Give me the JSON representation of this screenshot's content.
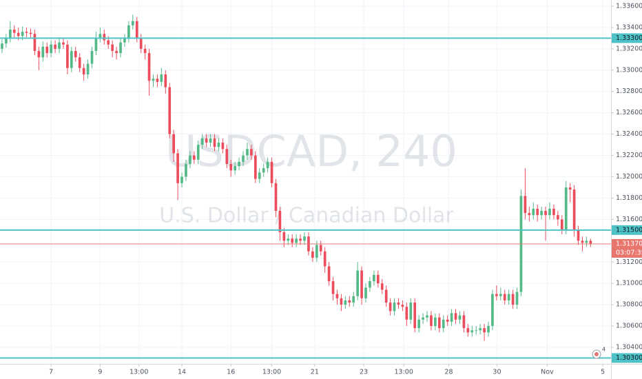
{
  "chart_data": {
    "type": "candlestick",
    "title": "USDCAD, 240",
    "subtitle": "U.S. Dollar / Canadian Dollar",
    "up_color": "#53b987",
    "down_color": "#eb4d5c",
    "grid": true,
    "ylim": [
      1.30245,
      1.33658
    ],
    "xlim": [
      -0.5,
      149
    ],
    "yticks": [
      {
        "value": 1.336,
        "label": "1.33600"
      },
      {
        "value": 1.334,
        "label": "1.33400"
      },
      {
        "value": 1.332,
        "label": "1.33200"
      },
      {
        "value": 1.33,
        "label": "1.33000"
      },
      {
        "value": 1.328,
        "label": "1.32800"
      },
      {
        "value": 1.326,
        "label": "1.32600"
      },
      {
        "value": 1.324,
        "label": "1.32400"
      },
      {
        "value": 1.322,
        "label": "1.32200"
      },
      {
        "value": 1.32,
        "label": "1.32000"
      },
      {
        "value": 1.318,
        "label": "1.31800"
      },
      {
        "value": 1.316,
        "label": "1.31600"
      },
      {
        "value": 1.312,
        "label": "1.31200"
      },
      {
        "value": 1.31,
        "label": "1.31000"
      },
      {
        "value": 1.308,
        "label": "1.30800"
      },
      {
        "value": 1.306,
        "label": "1.30600"
      },
      {
        "value": 1.304,
        "label": "1.30400"
      }
    ],
    "xticks": [
      {
        "value": 12,
        "label": "7"
      },
      {
        "value": 24,
        "label": "9"
      },
      {
        "value": 33.5,
        "label": "13:00"
      },
      {
        "value": 44,
        "label": "14"
      },
      {
        "value": 56,
        "label": "16"
      },
      {
        "value": 66,
        "label": "13:00"
      },
      {
        "value": 76.5,
        "label": "21"
      },
      {
        "value": 88.5,
        "label": "23"
      },
      {
        "value": 98.3,
        "label": "13:00"
      },
      {
        "value": 109.3,
        "label": "28"
      },
      {
        "value": 121.1,
        "label": "30"
      },
      {
        "value": 133.4,
        "label": "Nov"
      },
      {
        "value": 147,
        "label": "5"
      }
    ],
    "price_lines": [
      {
        "value": 1.333,
        "label": "1.33300",
        "color": "#4dc3c8"
      },
      {
        "value": 1.315,
        "label": "1.31500",
        "color": "#4dc3c8"
      },
      {
        "value": 1.303,
        "label": "1.30300",
        "color": "#4dc3c8"
      }
    ],
    "current_price": {
      "value": 1.3137,
      "label": "1.31370",
      "countdown": "03:07:35",
      "color": "#e8766c"
    },
    "badge": "4",
    "candles": [
      [
        1.332,
        1.3329,
        1.3316,
        1.3325
      ],
      [
        1.3325,
        1.3334,
        1.3321,
        1.333
      ],
      [
        1.333,
        1.3346,
        1.3326,
        1.3338
      ],
      [
        1.3338,
        1.3342,
        1.333,
        1.3335
      ],
      [
        1.3335,
        1.334,
        1.3328,
        1.3332
      ],
      [
        1.3332,
        1.3341,
        1.3328,
        1.3336
      ],
      [
        1.3336,
        1.334,
        1.3331,
        1.3335
      ],
      [
        1.3335,
        1.3339,
        1.333,
        1.3334
      ],
      [
        1.3334,
        1.3338,
        1.3314,
        1.3318
      ],
      [
        1.3318,
        1.3322,
        1.33,
        1.3312
      ],
      [
        1.3312,
        1.3327,
        1.3308,
        1.3322
      ],
      [
        1.3322,
        1.3326,
        1.3312,
        1.3316
      ],
      [
        1.3316,
        1.3328,
        1.3312,
        1.3324
      ],
      [
        1.3324,
        1.3328,
        1.3316,
        1.332
      ],
      [
        1.332,
        1.3331,
        1.3316,
        1.3326
      ],
      [
        1.3326,
        1.333,
        1.332,
        1.3324
      ],
      [
        1.3324,
        1.3328,
        1.3296,
        1.3302
      ],
      [
        1.3302,
        1.3322,
        1.3298,
        1.3318
      ],
      [
        1.3318,
        1.3322,
        1.3308,
        1.3312
      ],
      [
        1.3312,
        1.3316,
        1.3298,
        1.3302
      ],
      [
        1.3302,
        1.3306,
        1.329,
        1.3296
      ],
      [
        1.3296,
        1.331,
        1.3292,
        1.3306
      ],
      [
        1.3306,
        1.3322,
        1.3302,
        1.3318
      ],
      [
        1.3318,
        1.3336,
        1.3314,
        1.333
      ],
      [
        1.333,
        1.334,
        1.3326,
        1.3334
      ],
      [
        1.3334,
        1.3338,
        1.3324,
        1.3328
      ],
      [
        1.3328,
        1.3332,
        1.332,
        1.3324
      ],
      [
        1.3324,
        1.3328,
        1.3312,
        1.3318
      ],
      [
        1.3318,
        1.3322,
        1.331,
        1.3316
      ],
      [
        1.3316,
        1.333,
        1.3312,
        1.3326
      ],
      [
        1.3326,
        1.3334,
        1.3322,
        1.333
      ],
      [
        1.333,
        1.3346,
        1.3326,
        1.3342
      ],
      [
        1.3342,
        1.3352,
        1.3338,
        1.3346
      ],
      [
        1.3346,
        1.335,
        1.3326,
        1.333
      ],
      [
        1.333,
        1.3334,
        1.3316,
        1.332
      ],
      [
        1.332,
        1.3324,
        1.331,
        1.3316
      ],
      [
        1.3316,
        1.332,
        1.3276,
        1.329
      ],
      [
        1.329,
        1.3296,
        1.3284,
        1.3292
      ],
      [
        1.3292,
        1.3296,
        1.3284,
        1.3289
      ],
      [
        1.3289,
        1.3302,
        1.3285,
        1.3296
      ],
      [
        1.3296,
        1.33,
        1.3278,
        1.3284
      ],
      [
        1.3284,
        1.3288,
        1.3236,
        1.324
      ],
      [
        1.324,
        1.3244,
        1.3214,
        1.3222
      ],
      [
        1.3222,
        1.3226,
        1.3178,
        1.3194
      ],
      [
        1.3194,
        1.3204,
        1.319,
        1.32
      ],
      [
        1.32,
        1.3216,
        1.3196,
        1.3212
      ],
      [
        1.3212,
        1.3224,
        1.3208,
        1.322
      ],
      [
        1.322,
        1.3224,
        1.3212,
        1.3216
      ],
      [
        1.3216,
        1.3234,
        1.3212,
        1.323
      ],
      [
        1.323,
        1.324,
        1.3226,
        1.3236
      ],
      [
        1.3236,
        1.324,
        1.3228,
        1.3232
      ],
      [
        1.3232,
        1.324,
        1.3228,
        1.3236
      ],
      [
        1.3236,
        1.324,
        1.3224,
        1.3228
      ],
      [
        1.3228,
        1.3236,
        1.3224,
        1.3232
      ],
      [
        1.3232,
        1.3236,
        1.3222,
        1.3226
      ],
      [
        1.3226,
        1.323,
        1.3208,
        1.3212
      ],
      [
        1.3212,
        1.3216,
        1.32,
        1.3206
      ],
      [
        1.3206,
        1.3214,
        1.3202,
        1.321
      ],
      [
        1.321,
        1.3218,
        1.3206,
        1.3214
      ],
      [
        1.3214,
        1.3224,
        1.321,
        1.322
      ],
      [
        1.322,
        1.3232,
        1.3216,
        1.3226
      ],
      [
        1.3226,
        1.323,
        1.3216,
        1.322
      ],
      [
        1.322,
        1.3224,
        1.3194,
        1.3198
      ],
      [
        1.3198,
        1.3208,
        1.3194,
        1.3204
      ],
      [
        1.3204,
        1.3212,
        1.32,
        1.3208
      ],
      [
        1.3208,
        1.3218,
        1.3204,
        1.3214
      ],
      [
        1.3214,
        1.3218,
        1.319,
        1.3194
      ],
      [
        1.3194,
        1.3198,
        1.3162,
        1.3168
      ],
      [
        1.3168,
        1.3172,
        1.314,
        1.3148
      ],
      [
        1.3148,
        1.3152,
        1.3134,
        1.314
      ],
      [
        1.314,
        1.3146,
        1.3136,
        1.3142
      ],
      [
        1.3142,
        1.3146,
        1.3134,
        1.3138
      ],
      [
        1.3138,
        1.3146,
        1.3134,
        1.3142
      ],
      [
        1.3142,
        1.3146,
        1.3136,
        1.314
      ],
      [
        1.314,
        1.3148,
        1.3136,
        1.3144
      ],
      [
        1.3144,
        1.3148,
        1.3126,
        1.313
      ],
      [
        1.313,
        1.3134,
        1.312,
        1.3124
      ],
      [
        1.3124,
        1.314,
        1.312,
        1.3136
      ],
      [
        1.3136,
        1.314,
        1.3126,
        1.313
      ],
      [
        1.313,
        1.3134,
        1.311,
        1.3116
      ],
      [
        1.3116,
        1.312,
        1.3098,
        1.3102
      ],
      [
        1.3102,
        1.3106,
        1.3084,
        1.309
      ],
      [
        1.309,
        1.3094,
        1.308,
        1.3086
      ],
      [
        1.3086,
        1.309,
        1.3074,
        1.308
      ],
      [
        1.308,
        1.3088,
        1.3076,
        1.3084
      ],
      [
        1.3084,
        1.3088,
        1.3078,
        1.3082
      ],
      [
        1.3082,
        1.3092,
        1.3078,
        1.3088
      ],
      [
        1.3088,
        1.312,
        1.3084,
        1.3112
      ],
      [
        1.3112,
        1.3116,
        1.308,
        1.3086
      ],
      [
        1.3086,
        1.31,
        1.3082,
        1.3096
      ],
      [
        1.3096,
        1.3106,
        1.3092,
        1.3102
      ],
      [
        1.3102,
        1.3112,
        1.3098,
        1.3108
      ],
      [
        1.3108,
        1.3112,
        1.3096,
        1.31
      ],
      [
        1.31,
        1.3104,
        1.309,
        1.3094
      ],
      [
        1.3094,
        1.3098,
        1.3078,
        1.3082
      ],
      [
        1.3082,
        1.3086,
        1.307,
        1.3074
      ],
      [
        1.3074,
        1.3086,
        1.307,
        1.3082
      ],
      [
        1.3082,
        1.3086,
        1.3076,
        1.308
      ],
      [
        1.308,
        1.3084,
        1.3074,
        1.3078
      ],
      [
        1.3078,
        1.3082,
        1.306,
        1.3066
      ],
      [
        1.3066,
        1.3086,
        1.3062,
        1.3082
      ],
      [
        1.3082,
        1.3086,
        1.3054,
        1.3058
      ],
      [
        1.3058,
        1.307,
        1.3054,
        1.3066
      ],
      [
        1.3066,
        1.3072,
        1.3062,
        1.3068
      ],
      [
        1.3068,
        1.3074,
        1.3064,
        1.307
      ],
      [
        1.307,
        1.3074,
        1.3056,
        1.306
      ],
      [
        1.306,
        1.3072,
        1.3056,
        1.3068
      ],
      [
        1.3068,
        1.3072,
        1.3054,
        1.3058
      ],
      [
        1.3058,
        1.307,
        1.3054,
        1.3066
      ],
      [
        1.3066,
        1.307,
        1.306,
        1.3064
      ],
      [
        1.3064,
        1.3076,
        1.306,
        1.3072
      ],
      [
        1.3072,
        1.3076,
        1.3062,
        1.3066
      ],
      [
        1.3066,
        1.3074,
        1.3062,
        1.307
      ],
      [
        1.307,
        1.3074,
        1.3054,
        1.3058
      ],
      [
        1.3058,
        1.3062,
        1.305,
        1.3054
      ],
      [
        1.3054,
        1.306,
        1.305,
        1.3056
      ],
      [
        1.3056,
        1.306,
        1.3052,
        1.3056
      ],
      [
        1.3056,
        1.3062,
        1.3052,
        1.3058
      ],
      [
        1.3058,
        1.3062,
        1.3046,
        1.3054
      ],
      [
        1.3054,
        1.3064,
        1.305,
        1.306
      ],
      [
        1.306,
        1.3094,
        1.3056,
        1.309
      ],
      [
        1.309,
        1.3098,
        1.3084,
        1.3088
      ],
      [
        1.3088,
        1.3096,
        1.3084,
        1.309
      ],
      [
        1.309,
        1.3094,
        1.308,
        1.3084
      ],
      [
        1.3084,
        1.3094,
        1.308,
        1.309
      ],
      [
        1.309,
        1.3094,
        1.3076,
        1.308
      ],
      [
        1.308,
        1.3096,
        1.3076,
        1.3092
      ],
      [
        1.3092,
        1.3188,
        1.3088,
        1.3182
      ],
      [
        1.3182,
        1.3208,
        1.316,
        1.3166
      ],
      [
        1.3166,
        1.3172,
        1.3158,
        1.3164
      ],
      [
        1.3164,
        1.3176,
        1.316,
        1.317
      ],
      [
        1.317,
        1.3174,
        1.3158,
        1.3164
      ],
      [
        1.3164,
        1.3172,
        1.316,
        1.3168
      ],
      [
        1.3168,
        1.3172,
        1.314,
        1.3164
      ],
      [
        1.3164,
        1.3176,
        1.316,
        1.317
      ],
      [
        1.317,
        1.3174,
        1.316,
        1.3164
      ],
      [
        1.3164,
        1.3168,
        1.3154,
        1.316
      ],
      [
        1.316,
        1.3164,
        1.3146,
        1.315
      ],
      [
        1.315,
        1.3196,
        1.3146,
        1.319
      ],
      [
        1.319,
        1.3194,
        1.3176,
        1.3188
      ],
      [
        1.3188,
        1.3192,
        1.3144,
        1.315
      ],
      [
        1.315,
        1.3154,
        1.3136,
        1.314
      ],
      [
        1.314,
        1.3144,
        1.313,
        1.3138
      ],
      [
        1.3138,
        1.3144,
        1.3134,
        1.314
      ],
      [
        1.314,
        1.3142,
        1.3134,
        1.3137
      ]
    ]
  }
}
